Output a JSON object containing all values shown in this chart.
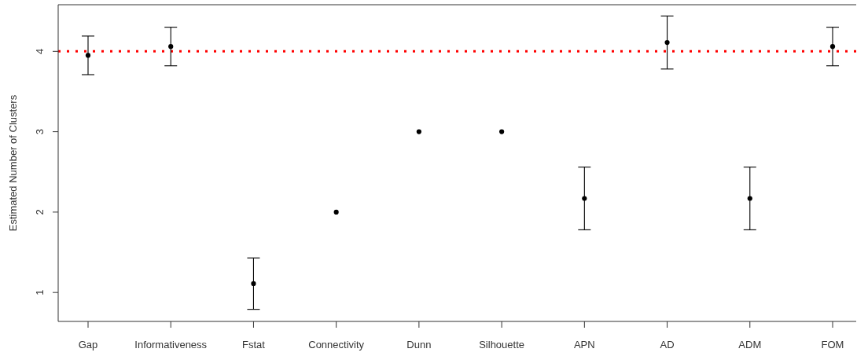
{
  "chart_data": {
    "type": "scatter",
    "ylabel": "Estimated Number of Clusters",
    "categories": [
      "Gap",
      "Informativeness",
      "Fstat",
      "Connectivity",
      "Dunn",
      "Silhouette",
      "APN",
      "AD",
      "ADM",
      "FOM"
    ],
    "values": [
      3.95,
      4.06,
      1.11,
      2,
      3,
      3,
      2.17,
      4.11,
      2.17,
      4.06
    ],
    "errors": [
      0.24,
      0.24,
      0.32,
      0,
      0,
      0,
      0.39,
      0.33,
      0.39,
      0.24
    ],
    "color": "#000000",
    "marker": "circle",
    "ylim": [
      0.64,
      4.58
    ],
    "yticks": [
      1,
      2,
      3,
      4
    ],
    "ref_lines": [
      {
        "axis": "y",
        "value": 4,
        "color": "#ff0000",
        "line_style": "dotted"
      }
    ]
  }
}
